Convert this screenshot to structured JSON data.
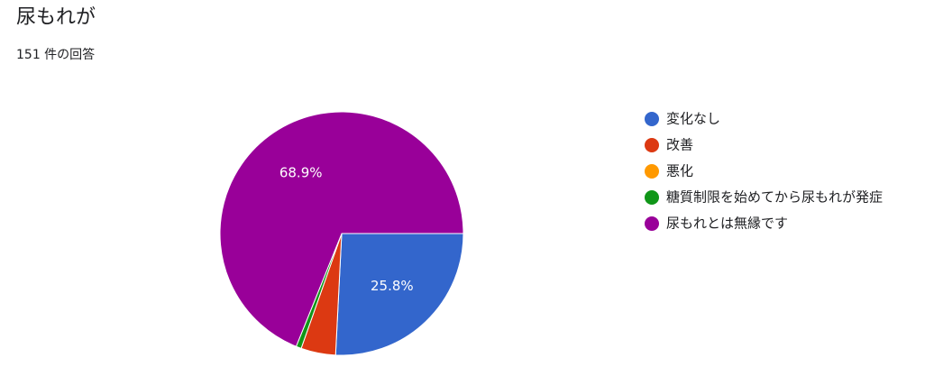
{
  "chart_data": {
    "type": "pie",
    "title": "尿もれが",
    "subtitle": "151 件の回答",
    "categories": [
      "変化なし",
      "改善",
      "悪化",
      "糖質制限を始めてから尿もれが発症",
      "尿もれとは無縁です"
    ],
    "values": [
      25.8,
      4.6,
      0,
      0.7,
      68.9
    ],
    "value_labels": [
      "25.8%",
      null,
      null,
      null,
      "68.9%"
    ],
    "colors": [
      "#3366cc",
      "#dc3912",
      "#ff9900",
      "#109618",
      "#990099"
    ],
    "legend": "right"
  }
}
